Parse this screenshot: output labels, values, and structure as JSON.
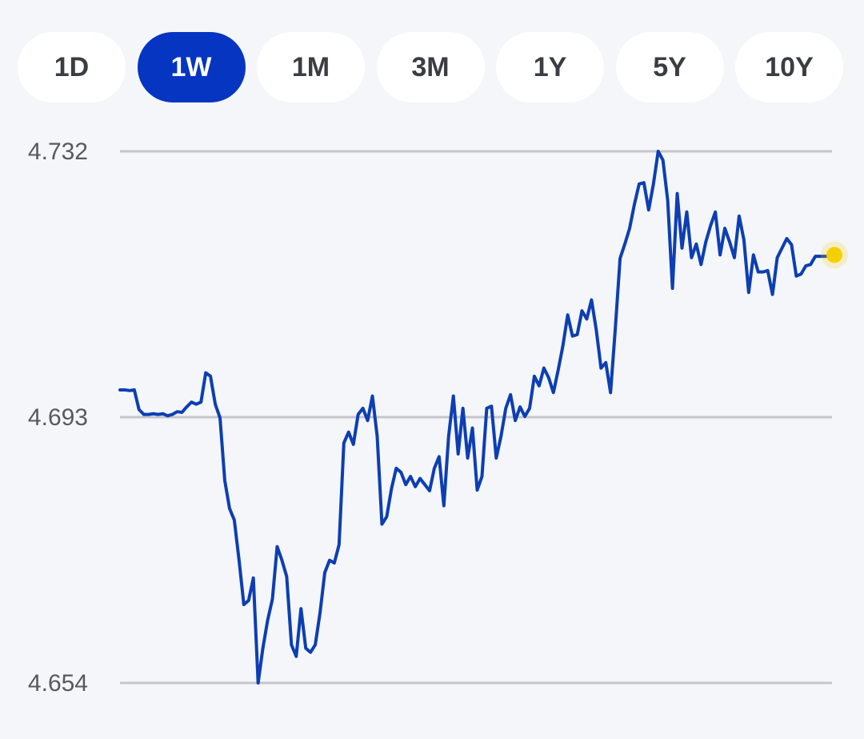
{
  "tabs": [
    "1D",
    "1W",
    "1M",
    "3M",
    "1Y",
    "5Y",
    "10Y"
  ],
  "selected_tab": 1,
  "chart_data": {
    "type": "line",
    "color": "#0d3eb3",
    "marker_color": "#f5d000",
    "ylim": [
      4.654,
      4.732
    ],
    "yticks": [
      4.654,
      4.693,
      4.732
    ],
    "grid": true,
    "values": [
      4.697,
      4.697,
      4.6969,
      4.697,
      4.6941,
      4.6934,
      4.6934,
      4.6935,
      4.6934,
      4.6935,
      4.6932,
      4.6934,
      4.6938,
      4.6937,
      4.6945,
      4.6952,
      4.6949,
      4.6952,
      4.6995,
      4.699,
      4.6949,
      4.6929,
      4.6837,
      4.6796,
      4.6779,
      4.672,
      4.6655,
      4.6661,
      4.6694,
      4.654,
      4.6591,
      4.6632,
      4.6663,
      4.674,
      4.672,
      4.6696,
      4.6596,
      4.6579,
      4.6649,
      4.6591,
      4.6585,
      4.6596,
      4.6643,
      4.6702,
      4.672,
      4.6716,
      4.6743,
      4.6892,
      4.6908,
      4.689,
      4.6934,
      4.6943,
      4.6925,
      4.6961,
      4.6902,
      4.6773,
      4.6784,
      4.6825,
      4.6855,
      4.6849,
      4.6831,
      4.6843,
      4.6828,
      4.684,
      4.6831,
      4.6822,
      4.6855,
      4.6872,
      4.68,
      4.6902,
      4.6961,
      4.6876,
      4.6943,
      4.687,
      4.6914,
      4.6823,
      4.6843,
      4.6943,
      4.6946,
      4.687,
      4.6902,
      4.6943,
      4.6963,
      4.6925,
      4.6945,
      4.6931,
      4.6943,
      4.699,
      4.6976,
      4.7002,
      4.6988,
      4.6966,
      4.6999,
      4.7035,
      4.708,
      4.7049,
      4.7051,
      4.7086,
      4.7074,
      4.7102,
      4.7058,
      4.7002,
      4.701,
      4.6966,
      4.706,
      4.7163,
      4.7184,
      4.7207,
      4.7242,
      4.7272,
      4.7274,
      4.7234,
      4.7272,
      4.732,
      4.7307,
      4.7248,
      4.7119,
      4.7258,
      4.7178,
      4.7231,
      4.7164,
      4.7184,
      4.7154,
      4.7187,
      4.7211,
      4.7231,
      4.7168,
      4.7207,
      4.7187,
      4.7164,
      4.7225,
      4.719,
      4.7113,
      4.7168,
      4.7143,
      4.7143,
      4.7145,
      4.711,
      4.7164,
      4.7178,
      4.7192,
      4.7183,
      4.7137,
      4.714,
      4.7152,
      4.7154,
      4.7166,
      4.7166,
      4.7166,
      4.7166,
      4.7168
    ]
  }
}
